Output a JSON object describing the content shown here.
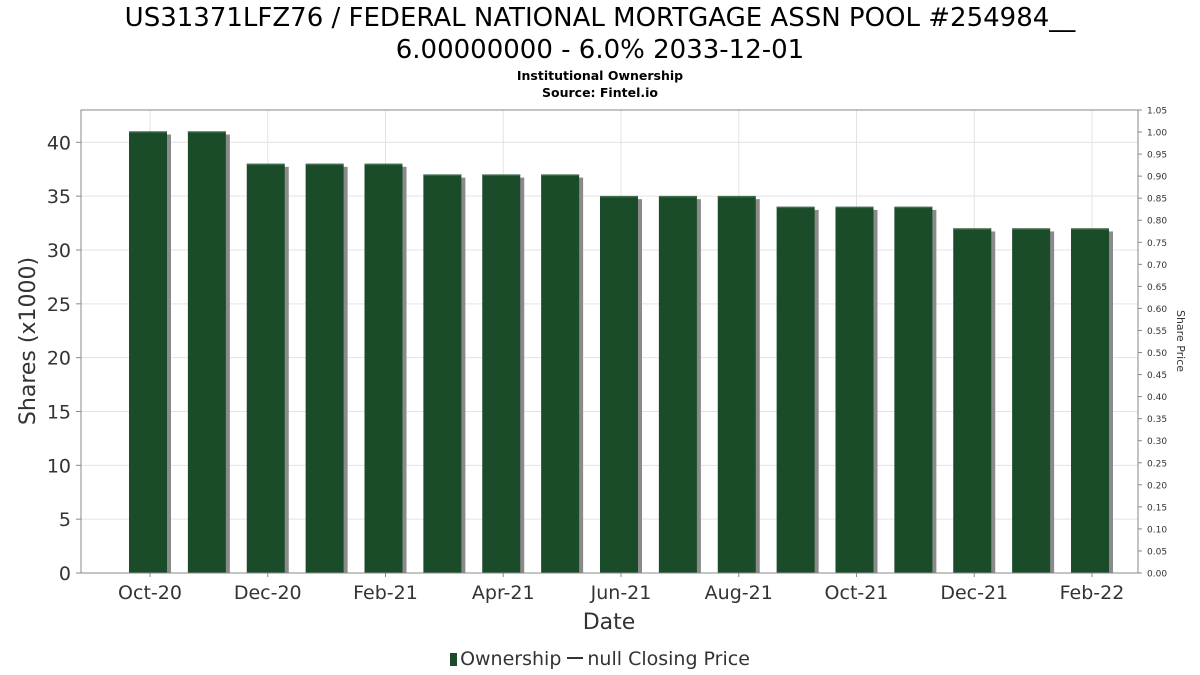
{
  "chart_data": {
    "type": "bar",
    "title_line1": "US31371LFZ76 / FEDERAL NATIONAL MORTGAGE ASSN POOL #254984__",
    "title_line2": "6.00000000 - 6.0% 2033-12-01",
    "subtitle": "Institutional Ownership",
    "source": "Source: Fintel.io",
    "xlabel": "Date",
    "ylabel": "Shares (x1000)",
    "y2label": "Share Price",
    "ylim": [
      0,
      43
    ],
    "yticks": [
      0,
      5,
      10,
      15,
      20,
      25,
      30,
      35,
      40
    ],
    "y2lim": [
      0,
      1.05
    ],
    "y2ticks": [
      "0.00",
      "0.05",
      "0.10",
      "0.15",
      "0.20",
      "0.25",
      "0.30",
      "0.35",
      "0.40",
      "0.45",
      "0.50",
      "0.55",
      "0.60",
      "0.65",
      "0.70",
      "0.75",
      "0.80",
      "0.85",
      "0.90",
      "0.95",
      "1.00",
      "1.05"
    ],
    "xticks": [
      "Oct-20",
      "Dec-20",
      "Feb-21",
      "Apr-21",
      "Jun-21",
      "Aug-21",
      "Oct-21",
      "Dec-21",
      "Feb-22"
    ],
    "grid": true,
    "legend_position": "bottom",
    "series": [
      {
        "name": "Ownership",
        "color": "#1b4c2a",
        "values": [
          41,
          41,
          38,
          38,
          38,
          37,
          37,
          37,
          35,
          35,
          35,
          34,
          34,
          34,
          32,
          32,
          32
        ]
      },
      {
        "name": "null Closing Price",
        "color": "#333333",
        "values": []
      }
    ]
  }
}
